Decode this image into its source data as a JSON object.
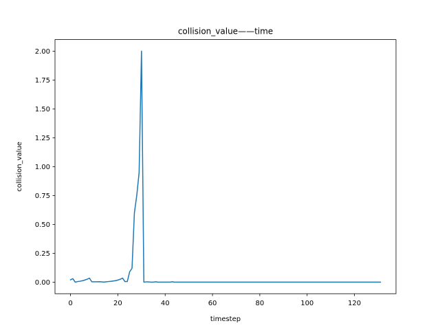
{
  "chart_data": {
    "type": "line",
    "title": "collision_value——time",
    "xlabel": "timestep",
    "ylabel": "collision_value",
    "xlim": [
      -6.55,
      137.55
    ],
    "ylim": [
      -0.1,
      2.1
    ],
    "xticks": [
      0,
      20,
      40,
      60,
      80,
      100,
      120
    ],
    "xtick_labels": [
      "0",
      "20",
      "40",
      "60",
      "80",
      "100",
      "120"
    ],
    "yticks": [
      0.0,
      0.25,
      0.5,
      0.75,
      1.0,
      1.25,
      1.5,
      1.75,
      2.0
    ],
    "ytick_labels": [
      "0.00",
      "0.25",
      "0.50",
      "0.75",
      "1.00",
      "1.25",
      "1.50",
      "1.75",
      "2.00"
    ],
    "grid": false,
    "series": [
      {
        "color": "#1f77b4",
        "x": [
          0,
          1,
          2,
          3,
          4,
          5,
          6,
          7,
          8,
          9,
          10,
          11,
          12,
          13,
          14,
          15,
          16,
          17,
          18,
          19,
          20,
          21,
          22,
          23,
          24,
          25,
          26,
          27,
          28,
          29,
          30,
          31,
          32,
          33,
          34,
          35,
          36,
          37,
          38,
          39,
          40,
          41,
          42,
          43,
          44,
          50,
          60,
          70,
          80,
          90,
          100,
          110,
          120,
          131
        ],
        "y": [
          0.02,
          0.03,
          0.0,
          0.005,
          0.008,
          0.012,
          0.018,
          0.025,
          0.035,
          0.003,
          0.003,
          0.003,
          0.004,
          0.003,
          0.0,
          0.003,
          0.005,
          0.007,
          0.01,
          0.013,
          0.018,
          0.025,
          0.035,
          0.005,
          0.005,
          0.09,
          0.12,
          0.6,
          0.75,
          0.95,
          2.0,
          0.0,
          0.002,
          0.002,
          0.0,
          0.0,
          0.003,
          0.0,
          0.0,
          0.0,
          0.0,
          0.0,
          0.0,
          0.003,
          0.0,
          0.0,
          0.0,
          0.0,
          0.0,
          0.0,
          0.0,
          0.0,
          0.0,
          0.0
        ]
      }
    ]
  }
}
